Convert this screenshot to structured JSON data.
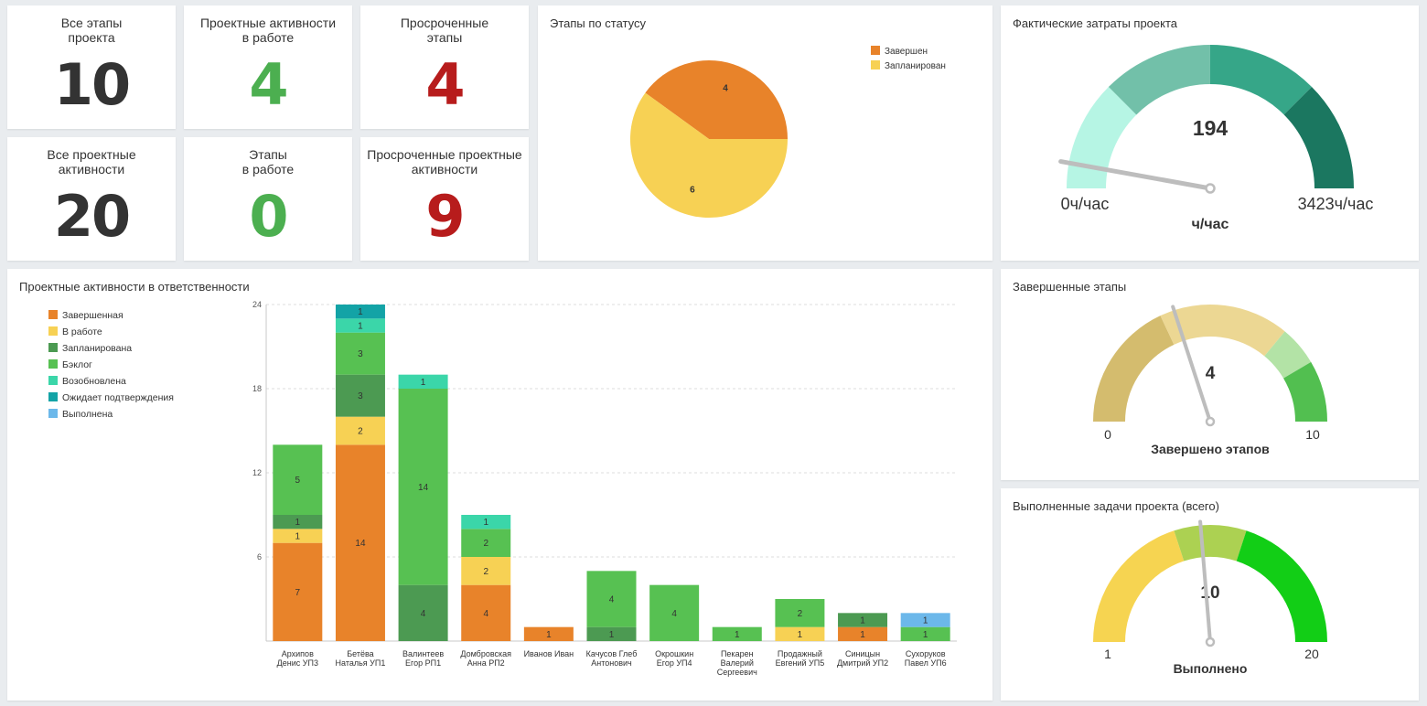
{
  "kpis": [
    {
      "title": "Все этапы\nпроекта",
      "value": "10",
      "color": "#333333"
    },
    {
      "title": "Проектные активности\nв работе",
      "value": "4",
      "color": "#4caf50"
    },
    {
      "title": "Просроченные\nэтапы",
      "value": "4",
      "color": "#b71c1c"
    },
    {
      "title": "Все проектные\nактивности",
      "value": "20",
      "color": "#333333"
    },
    {
      "title": "Этапы\nв работе",
      "value": "0",
      "color": "#4caf50"
    },
    {
      "title": "Просроченные проектные\nактивности",
      "value": "9",
      "color": "#b71c1c"
    }
  ],
  "pie": {
    "title": "Этапы по статусу",
    "chart_data": {
      "type": "pie",
      "slices": [
        {
          "label": "Завершен",
          "value": 4,
          "color": "#e8832a"
        },
        {
          "label": "Запланирован",
          "value": 6,
          "color": "#f7d154"
        }
      ]
    }
  },
  "gauges": {
    "cost": {
      "title": "Фактические затраты проекта",
      "value": "194",
      "min": "0ч/час",
      "max": "3423ч/час",
      "label": "ч/час"
    },
    "stages": {
      "title": "Завершенные этапы",
      "value": "4",
      "min": "0",
      "max": "10",
      "label": "Завершено этапов"
    },
    "tasks": {
      "title": "Выполненные задачи проекта (всего)",
      "value": "10",
      "min": "1",
      "max": "20",
      "label": "Выполнено"
    }
  },
  "gauge_data": {
    "cost": {
      "min": 0,
      "max": 3423,
      "value": 194,
      "bands": [
        {
          "to": 855,
          "color": "#b6f5e4"
        },
        {
          "to": 1711,
          "color": "#72c0a9"
        },
        {
          "to": 2567,
          "color": "#36a688"
        },
        {
          "to": 3423,
          "color": "#1b7760"
        }
      ]
    },
    "stages": {
      "min": 0,
      "max": 10,
      "value": 4,
      "bands": [
        {
          "to": 3.6,
          "color": "#d4bc6e"
        },
        {
          "to": 7.2,
          "color": "#ecd793"
        },
        {
          "to": 8.3,
          "color": "#b3e3a6"
        },
        {
          "to": 10,
          "color": "#52bf50"
        }
      ]
    },
    "tasks": {
      "min": 1,
      "max": 20,
      "value": 10,
      "bands": [
        {
          "to": 8.6,
          "color": "#f6d451"
        },
        {
          "to": 12.4,
          "color": "#acd152"
        },
        {
          "to": 20,
          "color": "#12ce16"
        }
      ]
    }
  },
  "bar": {
    "title": "Проектные активности в ответственности",
    "chart_data": {
      "type": "bar",
      "stacked": true,
      "ylim": [
        0,
        24
      ],
      "yticks": [
        6,
        12,
        18,
        24
      ],
      "categories": [
        "Архипов\nДенис УП3",
        "Бетёва\nНаталья УП1",
        "Валинтеев\nЕгор РП1",
        "Домбровская\nАнна РП2",
        "Иванов Иван",
        "Качусов Глеб\nАнтонович",
        "Окрошкин\nЕгор УП4",
        "Пекарен\nВалерий\nСергеевич",
        "Продажный\nЕвгений УП5",
        "Синицын\nДмитрий УП2",
        "Сухоруков\nПавел УП6"
      ],
      "series": [
        {
          "name": "Завершенная",
          "color": "#e8832a",
          "values": [
            7,
            14,
            0,
            4,
            1,
            0,
            0,
            0,
            0,
            1,
            0
          ]
        },
        {
          "name": "В работе",
          "color": "#f7d154",
          "values": [
            1,
            2,
            0,
            2,
            0,
            0,
            0,
            0,
            1,
            0,
            0
          ]
        },
        {
          "name": "Запланирована",
          "color": "#4c9a52",
          "values": [
            1,
            3,
            4,
            0,
            0,
            1,
            0,
            0,
            0,
            1,
            0
          ]
        },
        {
          "name": "Бэклог",
          "color": "#57c152",
          "values": [
            5,
            3,
            14,
            2,
            0,
            4,
            4,
            1,
            2,
            0,
            1
          ]
        },
        {
          "name": "Возобновлена",
          "color": "#3bd6a9",
          "values": [
            0,
            1,
            1,
            1,
            0,
            0,
            0,
            0,
            0,
            0,
            0
          ]
        },
        {
          "name": "Ожидает подтверждения",
          "color": "#13a3a6",
          "values": [
            0,
            1,
            0,
            0,
            0,
            0,
            0,
            0,
            0,
            0,
            0
          ]
        },
        {
          "name": "Выполнена",
          "color": "#6cb8ea",
          "values": [
            0,
            0,
            0,
            0,
            0,
            0,
            0,
            0,
            0,
            0,
            1
          ]
        }
      ]
    }
  }
}
